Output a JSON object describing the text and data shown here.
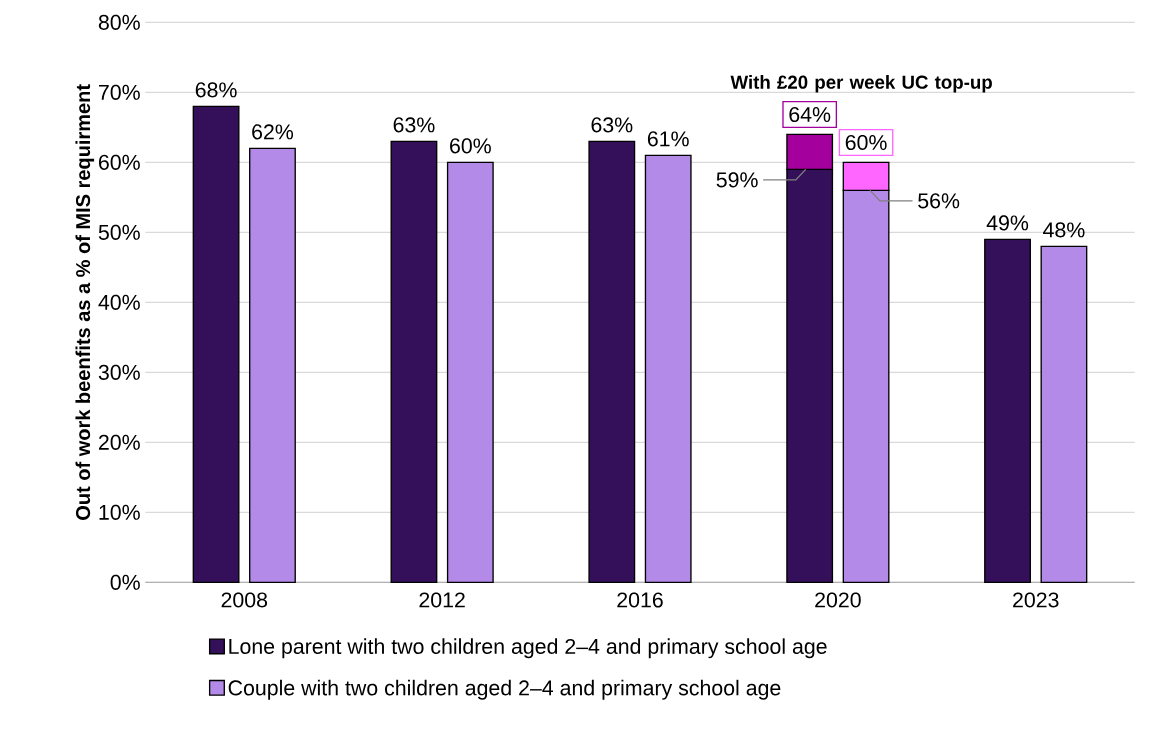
{
  "chart_data": {
    "type": "bar",
    "ylabel": "Out of work beenfits as a % of MIS requirment",
    "categories": [
      "2008",
      "2012",
      "2016",
      "2020",
      "2023"
    ],
    "series": [
      {
        "name": "Lone parent with two children aged 2–4 and primary school age",
        "color": "#35105a",
        "values": [
          68,
          63,
          63,
          59,
          49
        ],
        "value_labels": [
          "68%",
          "63%",
          "63%",
          "59%",
          "49%"
        ]
      },
      {
        "color": "#a3009e",
        "values": [
          null,
          null,
          null,
          5,
          null
        ],
        "base": [
          null,
          null,
          null,
          59,
          null
        ],
        "value_labels": [
          null,
          null,
          null,
          "64%",
          null
        ]
      },
      {
        "name": "Couple with two children aged 2–4 and primary school age",
        "color": "#b38ae8",
        "values": [
          62,
          60,
          61,
          56,
          48
        ],
        "value_labels": [
          "62%",
          "60%",
          "61%",
          "56%",
          "48%"
        ]
      },
      {
        "color": "#ff66ff",
        "values": [
          null,
          null,
          null,
          4,
          null
        ],
        "base": [
          null,
          null,
          null,
          56,
          null
        ],
        "value_labels": [
          null,
          null,
          null,
          "60%",
          null
        ]
      }
    ],
    "annotations": [
      "With £20 per week UC top-up"
    ],
    "ylim": [
      0,
      80
    ],
    "yticks": [
      {
        "value": 0,
        "label": "0%"
      },
      {
        "value": 10,
        "label": "10%"
      },
      {
        "value": 20,
        "label": "20%"
      },
      {
        "value": 30,
        "label": "30%"
      },
      {
        "value": 40,
        "label": "40%"
      },
      {
        "value": 50,
        "label": "50%"
      },
      {
        "value": 60,
        "label": "60%"
      },
      {
        "value": 70,
        "label": "70%"
      },
      {
        "value": 80,
        "label": "80%"
      }
    ],
    "grid": "y",
    "legend": "bottom"
  }
}
